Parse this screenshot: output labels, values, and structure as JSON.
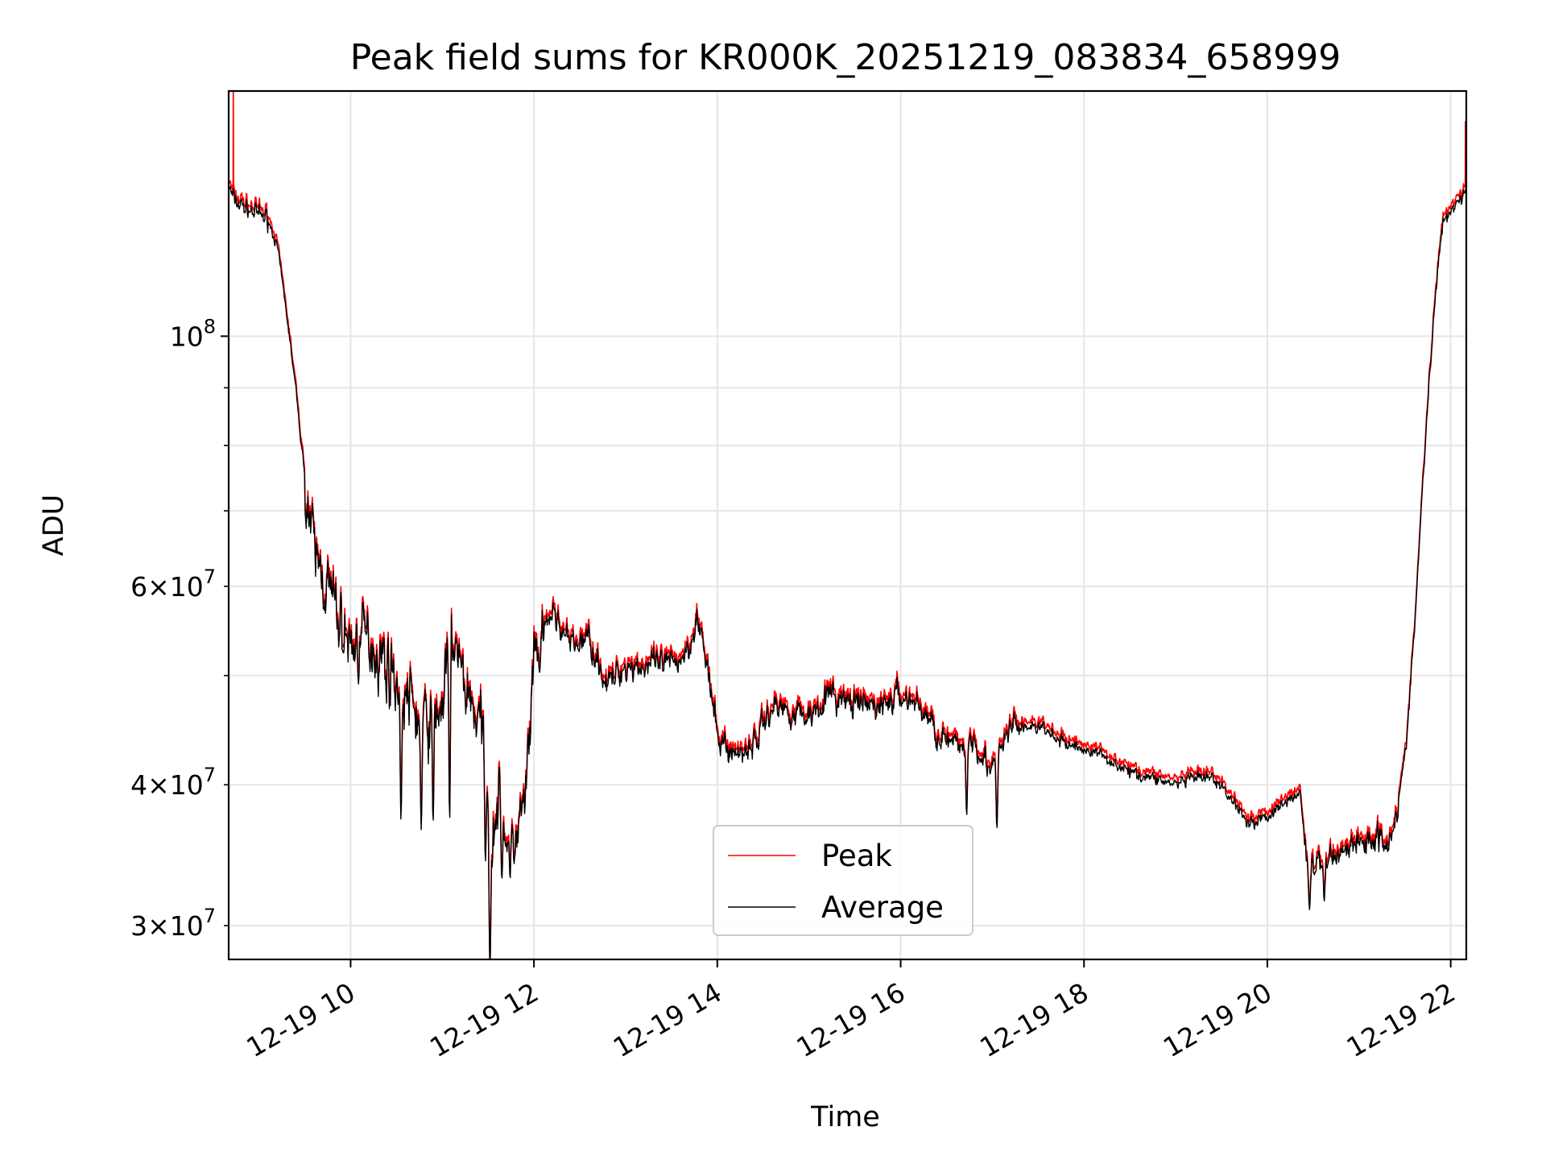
{
  "chart_data": {
    "type": "line",
    "title": "Peak field sums for KR000K_20251219_083834_658999",
    "xlabel": "Time",
    "ylabel": "ADU",
    "yscale": "log",
    "ylim": [
      28000000,
      165000000
    ],
    "xlim_hours": [
      8.67,
      22.17
    ],
    "grid": true,
    "legend_position": "bottom-center",
    "colors": {
      "peak": "#ff0000",
      "average": "#000000",
      "grid": "#e6e6e6",
      "legend_border": "#cccccc"
    },
    "x_ticks": [
      {
        "hour": 10,
        "label": "12-19 10"
      },
      {
        "hour": 12,
        "label": "12-19 12"
      },
      {
        "hour": 14,
        "label": "12-19 14"
      },
      {
        "hour": 16,
        "label": "12-19 16"
      },
      {
        "hour": 18,
        "label": "12-19 18"
      },
      {
        "hour": 20,
        "label": "12-19 20"
      },
      {
        "hour": 22,
        "label": "12-19 22"
      }
    ],
    "y_ticks_major": [
      {
        "value": 100000000,
        "base": "10",
        "exp": "8"
      }
    ],
    "y_ticks_minor": [
      {
        "value": 30000000,
        "mant": "3",
        "base": "10",
        "exp": "7"
      },
      {
        "value": 40000000,
        "mant": "4",
        "base": "10",
        "exp": "7"
      },
      {
        "value": 50000000
      },
      {
        "value": 60000000,
        "mant": "6",
        "base": "10",
        "exp": "7"
      },
      {
        "value": 70000000
      },
      {
        "value": 80000000
      },
      {
        "value": 90000000
      }
    ],
    "series": [
      {
        "name": "Peak",
        "key": "peak",
        "y_offset_factor": 1.012,
        "spikes": [
          [
            8.72,
            170000000
          ],
          [
            22.16,
            155000000
          ]
        ]
      },
      {
        "name": "Average",
        "key": "average",
        "y_offset_factor": 1.0,
        "spikes": []
      }
    ],
    "average_anchors": [
      [
        8.67,
        136000000
      ],
      [
        8.72,
        132000000
      ],
      [
        8.85,
        130000000
      ],
      [
        9.0,
        128000000
      ],
      [
        9.1,
        127000000
      ],
      [
        9.2,
        120000000
      ],
      [
        9.3,
        105000000
      ],
      [
        9.4,
        90000000
      ],
      [
        9.5,
        75000000
      ],
      [
        9.6,
        64000000
      ],
      [
        9.75,
        60000000
      ],
      [
        9.9,
        55000000
      ],
      [
        10.0,
        53000000
      ],
      [
        10.2,
        54000000
      ],
      [
        10.4,
        51000000
      ],
      [
        10.6,
        48000000
      ],
      [
        10.8,
        45000000
      ],
      [
        11.0,
        47000000
      ],
      [
        11.1,
        55000000
      ],
      [
        11.2,
        50000000
      ],
      [
        11.3,
        48000000
      ],
      [
        11.45,
        44000000
      ],
      [
        11.55,
        36000000
      ],
      [
        11.6,
        39000000
      ],
      [
        11.75,
        35000000
      ],
      [
        11.9,
        38000000
      ],
      [
        12.0,
        50000000
      ],
      [
        12.1,
        54000000
      ],
      [
        12.2,
        57000000
      ],
      [
        12.4,
        53000000
      ],
      [
        12.6,
        54000000
      ],
      [
        12.8,
        49000000
      ],
      [
        13.0,
        51000000
      ],
      [
        13.2,
        51000000
      ],
      [
        13.5,
        51000000
      ],
      [
        13.7,
        53000000
      ],
      [
        13.78,
        57000000
      ],
      [
        13.9,
        50000000
      ],
      [
        14.0,
        44000000
      ],
      [
        14.2,
        42500000
      ],
      [
        14.4,
        43500000
      ],
      [
        14.6,
        47000000
      ],
      [
        14.8,
        46500000
      ],
      [
        15.0,
        46000000
      ],
      [
        15.2,
        48000000
      ],
      [
        15.5,
        47000000
      ],
      [
        15.8,
        47000000
      ],
      [
        16.0,
        48000000
      ],
      [
        16.2,
        47000000
      ],
      [
        16.4,
        44500000
      ],
      [
        16.6,
        43000000
      ],
      [
        16.8,
        44000000
      ],
      [
        17.0,
        41000000
      ],
      [
        17.2,
        45000000
      ],
      [
        17.5,
        45000000
      ],
      [
        17.8,
        43500000
      ],
      [
        18.0,
        43000000
      ],
      [
        18.2,
        42500000
      ],
      [
        18.5,
        41000000
      ],
      [
        18.8,
        40500000
      ],
      [
        19.0,
        40000000
      ],
      [
        19.2,
        40500000
      ],
      [
        19.4,
        40500000
      ],
      [
        19.6,
        39000000
      ],
      [
        19.8,
        37000000
      ],
      [
        20.0,
        37500000
      ],
      [
        20.2,
        38500000
      ],
      [
        20.35,
        39500000
      ],
      [
        20.45,
        33500000
      ],
      [
        20.6,
        34000000
      ],
      [
        20.8,
        35000000
      ],
      [
        21.0,
        35500000
      ],
      [
        21.2,
        36000000
      ],
      [
        21.3,
        35500000
      ],
      [
        21.4,
        37500000
      ],
      [
        21.5,
        42000000
      ],
      [
        21.6,
        54000000
      ],
      [
        21.7,
        75000000
      ],
      [
        21.8,
        100000000
      ],
      [
        21.9,
        125000000
      ],
      [
        22.0,
        130000000
      ],
      [
        22.1,
        132000000
      ],
      [
        22.17,
        136000000
      ]
    ],
    "noise": {
      "seed": 7,
      "step_hours": 0.006,
      "segments": [
        [
          8.67,
          9.1,
          0.025
        ],
        [
          9.1,
          9.5,
          0.012
        ],
        [
          9.5,
          12.1,
          0.085
        ],
        [
          12.1,
          14.0,
          0.035
        ],
        [
          14.0,
          17.3,
          0.035
        ],
        [
          17.3,
          20.4,
          0.016
        ],
        [
          20.4,
          21.45,
          0.035
        ],
        [
          21.45,
          22.17,
          0.02
        ]
      ]
    },
    "dips": [
      [
        11.52,
        27000000
      ],
      [
        11.47,
        34000000
      ],
      [
        11.65,
        33000000
      ],
      [
        11.74,
        33000000
      ],
      [
        10.55,
        37000000
      ],
      [
        10.77,
        36500000
      ],
      [
        10.9,
        37000000
      ],
      [
        11.08,
        37000000
      ],
      [
        16.72,
        37500000
      ],
      [
        17.05,
        36500000
      ],
      [
        20.46,
        31000000
      ],
      [
        20.62,
        31500000
      ]
    ],
    "legend": [
      {
        "label": "Peak",
        "key": "peak"
      },
      {
        "label": "Average",
        "key": "average"
      }
    ]
  }
}
